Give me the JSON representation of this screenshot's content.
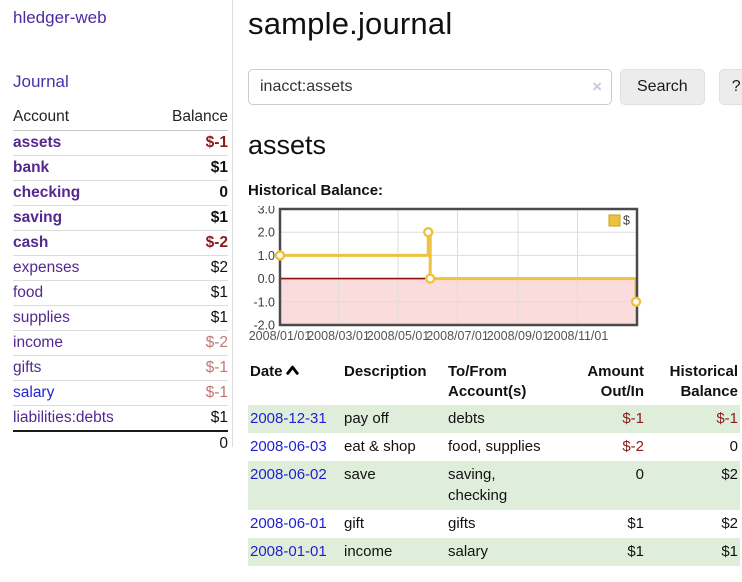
{
  "app": {
    "brand": "hledger-web",
    "nav_journal": "Journal"
  },
  "sidebar": {
    "header": {
      "account": "Account",
      "balance": "Balance"
    },
    "accounts": [
      {
        "name": "assets",
        "balance": "$-1",
        "depth": 0,
        "bold": true,
        "balance_style": "neg",
        "name_style": ""
      },
      {
        "name": "bank",
        "balance": "$1",
        "depth": 1,
        "bold": true,
        "balance_style": "",
        "name_style": ""
      },
      {
        "name": "checking",
        "balance": "0",
        "depth": 2,
        "bold": true,
        "balance_style": "",
        "name_style": ""
      },
      {
        "name": "saving",
        "balance": "$1",
        "depth": 2,
        "bold": true,
        "balance_style": "",
        "name_style": ""
      },
      {
        "name": "cash",
        "balance": "$-2",
        "depth": 1,
        "bold": true,
        "balance_style": "neg",
        "name_style": ""
      },
      {
        "name": "expenses",
        "balance": "$2",
        "depth": 0,
        "bold": false,
        "balance_style": "",
        "name_style": ""
      },
      {
        "name": "food",
        "balance": "$1",
        "depth": 1,
        "bold": false,
        "balance_style": "",
        "name_style": ""
      },
      {
        "name": "supplies",
        "balance": "$1",
        "depth": 1,
        "bold": false,
        "balance_style": "",
        "name_style": ""
      },
      {
        "name": "income",
        "balance": "$-2",
        "depth": 0,
        "bold": false,
        "balance_style": "neg-soft",
        "name_style": ""
      },
      {
        "name": "gifts",
        "balance": "$-1",
        "depth": 1,
        "bold": false,
        "balance_style": "neg-soft",
        "name_style": ""
      },
      {
        "name": "salary",
        "balance": "$-1",
        "depth": 1,
        "bold": false,
        "balance_style": "neg-soft",
        "name_style": "blue"
      },
      {
        "name": "liabilities:debts",
        "balance": "$1",
        "depth": 0,
        "bold": false,
        "balance_style": "",
        "name_style": ""
      }
    ],
    "total": "0"
  },
  "main": {
    "title": "sample.journal",
    "search": {
      "value": "inacct:assets",
      "clear_icon": "×",
      "button_label": "Search",
      "help_label": "?"
    },
    "account_heading": "assets",
    "chart_label": "Historical Balance:"
  },
  "chart_data": {
    "type": "line",
    "step": true,
    "title": "Historical Balance",
    "series": [
      {
        "name": "$",
        "color": "#edc240",
        "points": [
          [
            "2008-01-01",
            1
          ],
          [
            "2008-06-01",
            2
          ],
          [
            "2008-06-03",
            0
          ],
          [
            "2008-12-31",
            -1
          ]
        ]
      }
    ],
    "x_range": [
      "2008-01-01",
      "2009-01-01"
    ],
    "x_ticks": [
      {
        "label": "2008/01/01",
        "date": "2008-01-01"
      },
      {
        "label": "2008/03/01",
        "date": "2008-03-01"
      },
      {
        "label": "2008/05/01",
        "date": "2008-05-01"
      },
      {
        "label": "2008/07/01",
        "date": "2008-07-01"
      },
      {
        "label": "2008/09/01",
        "date": "2008-09-01"
      },
      {
        "label": "2008/11/01",
        "date": "2008-11-01"
      }
    ],
    "y_ticks": [
      {
        "label": "3.0",
        "value": 3
      },
      {
        "label": "2.0",
        "value": 2
      },
      {
        "label": "1.0",
        "value": 1
      },
      {
        "label": "0.0",
        "value": 0
      },
      {
        "label": "-1.0",
        "value": -1
      },
      {
        "label": "-2.0",
        "value": -2
      }
    ],
    "ylim": [
      -2,
      3
    ],
    "grid": true,
    "legend": {
      "label": "$",
      "position": "top-right"
    },
    "colors": {
      "line": "#edc240",
      "negative_region": "#fbdcdc",
      "zero_line": "#8f1010",
      "grid": "#dddddd",
      "border": "#4a4a4a"
    }
  },
  "register": {
    "headers": {
      "date": "Date",
      "sort_icon": "chevron-up",
      "description": "Description",
      "accounts": "To/From Account(s)",
      "amount": "Amount Out/In",
      "balance": "Historical Balance"
    },
    "rows": [
      {
        "date": "2008-12-31",
        "description": "pay off",
        "accounts": "debts",
        "amount": "$-1",
        "amount_style": "neg",
        "balance": "$-1",
        "balance_style": "neg"
      },
      {
        "date": "2008-06-03",
        "description": "eat & shop",
        "accounts": "food, supplies",
        "amount": "$-2",
        "amount_style": "neg",
        "balance": "0",
        "balance_style": ""
      },
      {
        "date": "2008-06-02",
        "description": "save",
        "accounts": "saving, checking",
        "amount": "0",
        "amount_style": "",
        "balance": "$2",
        "balance_style": ""
      },
      {
        "date": "2008-06-01",
        "description": "gift",
        "accounts": "gifts",
        "amount": "$1",
        "amount_style": "",
        "balance": "$2",
        "balance_style": ""
      },
      {
        "date": "2008-01-01",
        "description": "income",
        "accounts": "salary",
        "amount": "$1",
        "amount_style": "",
        "balance": "$1",
        "balance_style": ""
      }
    ]
  }
}
